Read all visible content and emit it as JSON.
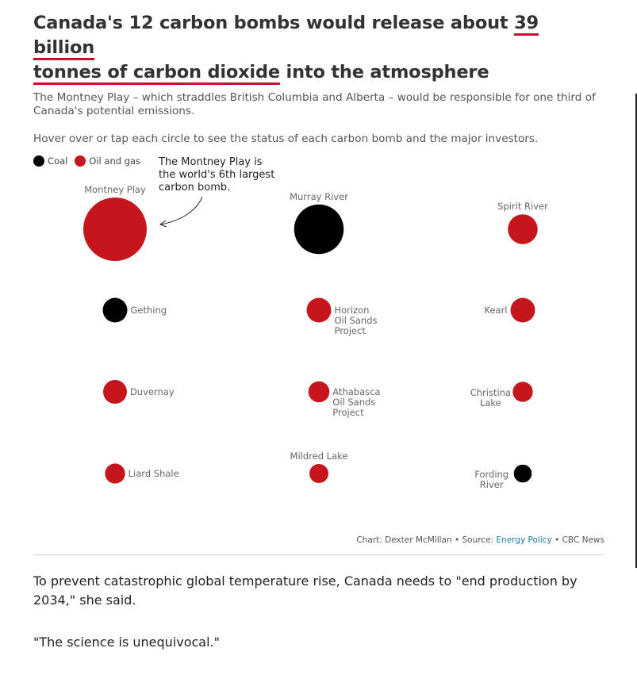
{
  "header": {
    "title_pre": "Canada's 12 carbon bombs would release about ",
    "title_highlight_1": "39 billion",
    "title_line2_highlight": "tonnes of carbon dioxide",
    "title_post": " into the atmosphere",
    "subtitle": "The Montney Play – which straddles British Columbia and Alberta – would be responsible for one third of Canada's potential emissions.",
    "hint": "Hover over or tap each circle to see the status of each carbon bomb and the major investors."
  },
  "legend": [
    {
      "label": "Coal",
      "color": "#000000"
    },
    {
      "label": "Oil and gas",
      "color": "#c4161c"
    }
  ],
  "colors": {
    "coal": "#000000",
    "oil_gas": "#c4161c"
  },
  "chart_data": {
    "type": "bubble-grid",
    "title": "Canada's 12 carbon bombs would release about 39 billion tonnes of carbon dioxide into the atmosphere",
    "size_note": "circle area proportional to potential emissions (relative, estimated)",
    "annotation": "The Montney Play is the world's 6th largest carbon bomb.",
    "points": [
      {
        "name": "Montney Play",
        "kind": "oil_gas",
        "value": 100
      },
      {
        "name": "Murray River",
        "kind": "coal",
        "value": 61
      },
      {
        "name": "Spirit River",
        "kind": "oil_gas",
        "value": 22
      },
      {
        "name": "Gething",
        "kind": "coal",
        "value": 15
      },
      {
        "name": "Horizon Oil Sands Project",
        "kind": "oil_gas",
        "value": 15
      },
      {
        "name": "Kearl",
        "kind": "oil_gas",
        "value": 15
      },
      {
        "name": "Duvernay",
        "kind": "oil_gas",
        "value": 14
      },
      {
        "name": "Athabasca Oil Sands Project",
        "kind": "oil_gas",
        "value": 11
      },
      {
        "name": "Christina Lake",
        "kind": "oil_gas",
        "value": 10
      },
      {
        "name": "Liard Shale",
        "kind": "oil_gas",
        "value": 10
      },
      {
        "name": "Mildred Lake",
        "kind": "oil_gas",
        "value": 9
      },
      {
        "name": "Fording River",
        "kind": "coal",
        "value": 8
      }
    ]
  },
  "credit": {
    "prefix": "Chart: Dexter McMillan • Source: ",
    "link": "Energy Policy",
    "suffix": " • CBC News"
  },
  "body": [
    "To prevent catastrophic global temperature rise, Canada needs to \"end production by 2034,\" she said.",
    "\"The science is unequivocal.\""
  ]
}
